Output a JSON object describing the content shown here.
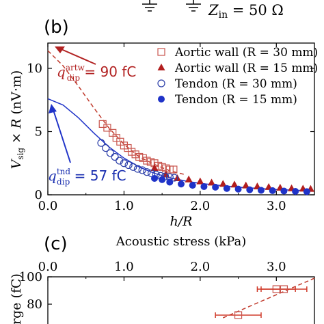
{
  "top_strip": {
    "zin_label": "Z",
    "zin_sub": "in",
    "zin_value": " = 50 Ω"
  },
  "panel_b": {
    "panel_label": "(b)",
    "xlabel": "h/R",
    "ylabel_parts": [
      "V",
      "sig",
      " × ",
      "R",
      " (nV·m)"
    ],
    "annotation_aortic": {
      "q": "q",
      "sup": "artw",
      "sub": "dip",
      "text": " = 90 fC",
      "color": "#b22222"
    },
    "annotation_tendon": {
      "q": "q",
      "sup": "tnd",
      "sub": "dip",
      "text": " = 57 fC",
      "color": "#1a2fb0"
    }
  },
  "panel_c": {
    "panel_label": "(c)",
    "top_xlabel": "Acoustic stress (kPa)",
    "ylabel_partial": "rge (fC)"
  },
  "chart_data": [
    {
      "type": "scatter",
      "panel": "b",
      "xlabel": "h/R",
      "ylabel": "V_sig × R (nV·m)",
      "xlim": [
        0,
        3.5
      ],
      "ylim": [
        0,
        12
      ],
      "xticks": [
        "0.0",
        "1.0",
        "2.0",
        "3.0"
      ],
      "xtick_values": [
        0,
        1,
        2,
        3
      ],
      "yticks": [
        "0",
        "5",
        "10"
      ],
      "ytick_values": [
        0,
        5,
        10
      ],
      "legend_position": "top-right",
      "series": [
        {
          "name": "Aortic wall (R = 30 mm)",
          "marker": "open-square",
          "color": "#c8544c",
          "x": [
            0.72,
            0.78,
            0.85,
            0.9,
            0.95,
            1.0,
            1.05,
            1.1,
            1.15,
            1.2,
            1.25,
            1.3,
            1.35,
            1.4,
            1.45,
            1.5,
            1.55,
            1.6,
            1.65
          ],
          "y": [
            5.6,
            5.3,
            4.9,
            4.5,
            4.2,
            3.9,
            3.7,
            3.4,
            3.2,
            3.0,
            2.9,
            2.7,
            2.6,
            2.5,
            2.3,
            2.2,
            2.1,
            2.0,
            2.0
          ]
        },
        {
          "name": "Aortic wall (R = 15 mm)",
          "marker": "filled-triangle",
          "color": "#b21e1e",
          "x": [
            1.4,
            1.55,
            1.7,
            1.85,
            2.0,
            2.15,
            2.3,
            2.45,
            2.6,
            2.75,
            2.9,
            3.05,
            3.2,
            3.35,
            3.45
          ],
          "y": [
            2.1,
            1.6,
            1.3,
            1.2,
            1.05,
            0.95,
            0.85,
            0.8,
            0.72,
            0.65,
            0.6,
            0.55,
            0.5,
            0.47,
            0.45
          ]
        },
        {
          "name": "Tendon (R = 30 mm)",
          "marker": "open-circle",
          "color": "#2b3ea8",
          "x": [
            0.7,
            0.76,
            0.82,
            0.88,
            0.94,
            1.0,
            1.06,
            1.12,
            1.18,
            1.24,
            1.3,
            1.36,
            1.42,
            1.48,
            1.54,
            1.6,
            1.66
          ],
          "y": [
            4.1,
            3.7,
            3.3,
            3.0,
            2.7,
            2.5,
            2.35,
            2.2,
            2.05,
            1.95,
            1.8,
            1.7,
            1.6,
            1.5,
            1.45,
            1.4,
            1.35
          ]
        },
        {
          "name": "Tendon (R = 15 mm)",
          "marker": "filled-circle",
          "color": "#1f33c8",
          "x": [
            1.4,
            1.5,
            1.6,
            1.75,
            1.9,
            2.05,
            2.2,
            2.35,
            2.5,
            2.65,
            2.8,
            2.95,
            3.1,
            3.25,
            3.4
          ],
          "y": [
            1.3,
            1.2,
            1.0,
            0.85,
            0.75,
            0.65,
            0.6,
            0.5,
            0.45,
            0.4,
            0.36,
            0.33,
            0.3,
            0.27,
            0.25
          ]
        }
      ],
      "fits": [
        {
          "style": "dashed",
          "color": "#c0392b",
          "x": [
            0.0,
            0.2,
            0.4,
            0.6,
            0.8,
            1.0,
            1.2,
            1.4,
            1.6,
            1.8
          ],
          "y": [
            11.4,
            10.2,
            8.6,
            6.9,
            5.3,
            4.0,
            3.0,
            2.4,
            1.9,
            1.6
          ]
        },
        {
          "style": "solid",
          "color": "#1f33c8",
          "x": [
            0.0,
            0.2,
            0.4,
            0.6,
            0.8,
            1.0,
            1.2,
            1.4,
            1.6,
            1.8,
            2.0,
            2.5,
            3.0,
            3.45
          ],
          "y": [
            7.6,
            7.1,
            6.1,
            4.9,
            3.8,
            2.9,
            2.2,
            1.7,
            1.35,
            1.1,
            0.9,
            0.6,
            0.42,
            0.32
          ]
        }
      ]
    },
    {
      "type": "scatter",
      "panel": "c",
      "top_xlabel": "Acoustic stress (kPa)",
      "xlim": [
        0,
        3.5
      ],
      "ylim": [
        60,
        100
      ],
      "xticks": [
        "0.0",
        "1.0",
        "2.0",
        "3.0"
      ],
      "xtick_values": [
        0,
        1,
        2,
        3
      ],
      "yticks": [
        "80",
        "100"
      ],
      "ytick_values": [
        80,
        100
      ],
      "series": [
        {
          "name": "Aortic wall",
          "marker": "open-square",
          "color": "#c8544c",
          "x": [
            2.5,
            3.0,
            3.1
          ],
          "y": [
            72,
            91,
            91
          ],
          "xerr": [
            0.3,
            0.25,
            0.3
          ]
        }
      ],
      "fits": [
        {
          "style": "dashed",
          "color": "#c0392b",
          "x": [
            2.3,
            3.5
          ],
          "y": [
            70,
            99
          ]
        }
      ]
    }
  ]
}
